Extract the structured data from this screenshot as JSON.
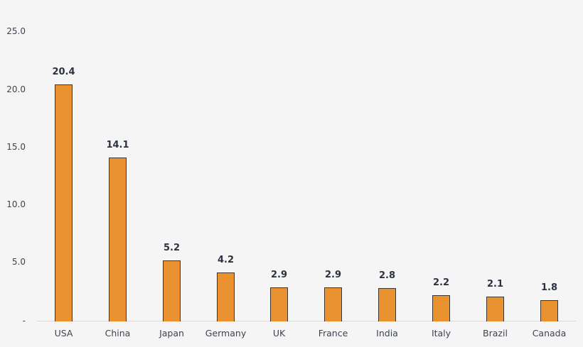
{
  "chart_data": {
    "type": "bar",
    "title": "",
    "xlabel": "",
    "ylabel": "",
    "categories": [
      "USA",
      "China",
      "Japan",
      "Germany",
      "UK",
      "France",
      "India",
      "Italy",
      "Brazil",
      "Canada"
    ],
    "values": [
      20.4,
      14.1,
      5.2,
      4.2,
      2.9,
      2.9,
      2.8,
      2.2,
      2.1,
      1.8
    ],
    "value_labels": [
      "20.4",
      "14.1",
      "5.2",
      "4.2",
      "2.9",
      "2.9",
      "2.8",
      "2.2",
      "2.1",
      "1.8"
    ],
    "ylim": [
      0,
      25
    ],
    "yticks": [
      "-",
      "5.0",
      "10.0",
      "15.0",
      "20.0",
      "25.0"
    ],
    "grid": false,
    "legend": null,
    "colors": {
      "bar": "#ea922f",
      "bar_outline": "#3b3631",
      "background": "#f5f5f5",
      "text": "#2b3240"
    }
  }
}
